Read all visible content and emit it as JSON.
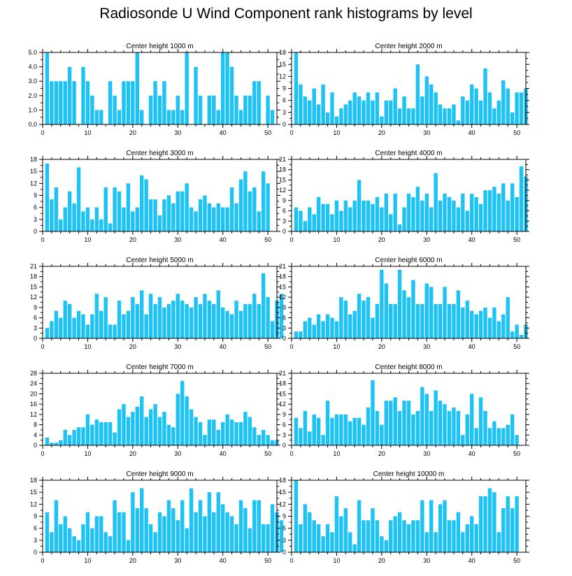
{
  "title": "Radiosonde U Wind Component rank histograms by level",
  "bar_color": "#1ec3f5",
  "chart_data": [
    {
      "type": "bar",
      "title": "Center height 1000 m",
      "ylim": [
        0,
        5
      ],
      "yticks": [
        0,
        1,
        2,
        3,
        4,
        5
      ],
      "ytick_labels": [
        "0.0",
        "1.0",
        "2.0",
        "3.0",
        "4.0",
        "5.0"
      ],
      "xlim": [
        0,
        52
      ],
      "xticks": [
        0,
        10,
        20,
        30,
        40,
        50
      ],
      "values": [
        5,
        3,
        3,
        3,
        3,
        4,
        3,
        0,
        4,
        3,
        2,
        1,
        1,
        0,
        3,
        2,
        1,
        3,
        3,
        3,
        5,
        1,
        0,
        2,
        3,
        2,
        3,
        1,
        1,
        2,
        1,
        5,
        0,
        4,
        2,
        0,
        2,
        2,
        1,
        5,
        5,
        4,
        2,
        1,
        2,
        2,
        3,
        3,
        0,
        2,
        1
      ]
    },
    {
      "type": "bar",
      "title": "Center height 2000 m",
      "ylim": [
        0,
        18
      ],
      "yticks": [
        0,
        3,
        6,
        9,
        12,
        15,
        18
      ],
      "ytick_labels": [
        "0",
        "3",
        "6",
        "9",
        "12",
        "15",
        "18"
      ],
      "xlim": [
        0,
        52
      ],
      "xticks": [
        0,
        10,
        20,
        30,
        40,
        50
      ],
      "values": [
        18,
        10,
        7,
        6,
        9,
        5,
        10,
        3,
        8,
        2,
        4,
        5,
        6,
        8,
        7,
        6,
        8,
        6,
        8,
        2,
        6,
        6,
        9,
        4,
        7,
        4,
        4,
        15,
        7,
        12,
        10,
        8,
        5,
        4,
        4,
        5,
        1,
        7,
        6,
        10,
        9,
        6,
        14,
        8,
        4,
        6,
        11,
        9,
        3,
        8,
        8,
        9
      ]
    },
    {
      "type": "bar",
      "title": "Center height 3000 m",
      "ylim": [
        0,
        18
      ],
      "yticks": [
        0,
        3,
        6,
        9,
        12,
        15,
        18
      ],
      "ytick_labels": [
        "0",
        "3",
        "6",
        "9",
        "12",
        "15",
        "18"
      ],
      "xlim": [
        0,
        52
      ],
      "xticks": [
        0,
        10,
        20,
        30,
        40,
        50
      ],
      "values": [
        17,
        8,
        11,
        3,
        6,
        10,
        7,
        16,
        5,
        6,
        3,
        6,
        3,
        11,
        2,
        11,
        10,
        6,
        12,
        5,
        6,
        14,
        13,
        8,
        8,
        4,
        8,
        9,
        7,
        10,
        10,
        12,
        6,
        5,
        8,
        9,
        7,
        6,
        7,
        6,
        6,
        11,
        7,
        13,
        15,
        10,
        11,
        5,
        15,
        12
      ]
    },
    {
      "type": "bar",
      "title": "Center height 4000 m",
      "ylim": [
        0,
        21
      ],
      "yticks": [
        0,
        3,
        6,
        9,
        12,
        15,
        18,
        21
      ],
      "ytick_labels": [
        "0",
        "3",
        "6",
        "9",
        "12",
        "15",
        "18",
        "21"
      ],
      "xlim": [
        0,
        52
      ],
      "xticks": [
        0,
        10,
        20,
        30,
        40,
        50
      ],
      "values": [
        7,
        6,
        3,
        7,
        5,
        10,
        8,
        8,
        5,
        9,
        6,
        9,
        7,
        9,
        15,
        9,
        9,
        8,
        10,
        7,
        11,
        5,
        11,
        2,
        7,
        11,
        10,
        13,
        9,
        11,
        7,
        17,
        9,
        11,
        10,
        9,
        7,
        11,
        6,
        11,
        10,
        8,
        12,
        12,
        13,
        11,
        14,
        9,
        14,
        10,
        19,
        16
      ]
    },
    {
      "type": "bar",
      "title": "Center height 5000 m",
      "ylim": [
        0,
        21
      ],
      "yticks": [
        0,
        3,
        6,
        9,
        12,
        15,
        18,
        21
      ],
      "ytick_labels": [
        "0",
        "3",
        "6",
        "9",
        "12",
        "15",
        "18",
        "21"
      ],
      "xlim": [
        0,
        52
      ],
      "xticks": [
        0,
        10,
        20,
        30,
        40,
        50
      ],
      "values": [
        3,
        5,
        8,
        6,
        11,
        10,
        6,
        8,
        7,
        4,
        7,
        13,
        8,
        12,
        4,
        4,
        11,
        7,
        8,
        12,
        10,
        14,
        7,
        13,
        10,
        12,
        9,
        10,
        11,
        13,
        11,
        10,
        9,
        12,
        10,
        13,
        11,
        10,
        14,
        9,
        8,
        7,
        11,
        8,
        10,
        10,
        13,
        10,
        19,
        12,
        5,
        11,
        13
      ]
    },
    {
      "type": "bar",
      "title": "Center height 6000 m",
      "ylim": [
        0,
        21
      ],
      "yticks": [
        0,
        3,
        6,
        9,
        12,
        15,
        18,
        21
      ],
      "ytick_labels": [
        "0",
        "3",
        "6",
        "9",
        "12",
        "15",
        "18",
        "21"
      ],
      "xlim": [
        0,
        52
      ],
      "xticks": [
        0,
        10,
        20,
        30,
        40,
        50
      ],
      "values": [
        2,
        2,
        5,
        6,
        4,
        7,
        5,
        7,
        6,
        5,
        12,
        11,
        7,
        8,
        13,
        11,
        12,
        6,
        10,
        20,
        16,
        10,
        10,
        20,
        14,
        12,
        17,
        10,
        10,
        16,
        15,
        10,
        10,
        15,
        10,
        10,
        14,
        9,
        11,
        8,
        7,
        8,
        9,
        6,
        9,
        5,
        7,
        12,
        2,
        4,
        1,
        4
      ]
    },
    {
      "type": "bar",
      "title": "Center height 7000 m",
      "ylim": [
        0,
        28
      ],
      "yticks": [
        0,
        4,
        8,
        12,
        16,
        20,
        24,
        28
      ],
      "ytick_labels": [
        "0",
        "4",
        "8",
        "12",
        "16",
        "20",
        "24",
        "28"
      ],
      "xlim": [
        0,
        52
      ],
      "xticks": [
        0,
        10,
        20,
        30,
        40,
        50
      ],
      "values": [
        3,
        1,
        1,
        2,
        6,
        4,
        6,
        7,
        7,
        12,
        8,
        10,
        9,
        9,
        9,
        5,
        14,
        16,
        11,
        13,
        15,
        19,
        11,
        14,
        16,
        11,
        13,
        8,
        7,
        20,
        25,
        19,
        14,
        11,
        9,
        4,
        10,
        10,
        6,
        9,
        12,
        10,
        9,
        9,
        13,
        11,
        7,
        4,
        6,
        4,
        2,
        2
      ]
    },
    {
      "type": "bar",
      "title": "Center height 8000 m",
      "ylim": [
        0,
        21
      ],
      "yticks": [
        0,
        3,
        6,
        9,
        12,
        15,
        18,
        21
      ],
      "ytick_labels": [
        "0",
        "3",
        "6",
        "9",
        "12",
        "15",
        "18",
        "21"
      ],
      "xlim": [
        0,
        52
      ],
      "xticks": [
        0,
        10,
        20,
        30,
        40,
        50
      ],
      "values": [
        8,
        5,
        10,
        4,
        9,
        8,
        3,
        13,
        8,
        9,
        9,
        9,
        7,
        8,
        8,
        6,
        11,
        19,
        10,
        6,
        13,
        13,
        14,
        10,
        13,
        13,
        9,
        10,
        17,
        15,
        10,
        16,
        13,
        12,
        10,
        11,
        10,
        3,
        9,
        15,
        5,
        14,
        10,
        5,
        7,
        5,
        5,
        6,
        9,
        3
      ]
    },
    {
      "type": "bar",
      "title": "Center height 9000 m",
      "ylim": [
        0,
        18
      ],
      "yticks": [
        0,
        3,
        6,
        9,
        12,
        15,
        18
      ],
      "ytick_labels": [
        "0",
        "3",
        "6",
        "9",
        "12",
        "15",
        "18"
      ],
      "xlim": [
        0,
        52
      ],
      "xticks": [
        0,
        10,
        20,
        30,
        40,
        50
      ],
      "values": [
        10,
        5,
        13,
        7,
        9,
        6,
        4,
        3,
        7,
        10,
        6,
        9,
        9,
        5,
        4,
        13,
        10,
        10,
        3,
        15,
        11,
        16,
        11,
        7,
        5,
        10,
        9,
        13,
        11,
        8,
        13,
        6,
        16,
        10,
        13,
        9,
        15,
        10,
        15,
        12,
        10,
        9,
        7,
        13,
        11,
        6,
        13,
        13,
        7,
        7,
        12,
        10,
        8
      ]
    },
    {
      "type": "bar",
      "title": "Center height 10000 m",
      "ylim": [
        0,
        18
      ],
      "yticks": [
        0,
        3,
        6,
        9,
        12,
        15,
        18
      ],
      "ytick_labels": [
        "0",
        "3",
        "6",
        "9",
        "12",
        "15",
        "18"
      ],
      "xlim": [
        0,
        52
      ],
      "xticks": [
        0,
        10,
        20,
        30,
        40,
        50
      ],
      "values": [
        18,
        7,
        12,
        10,
        8,
        7,
        4,
        7,
        5,
        14,
        9,
        11,
        5,
        2,
        13,
        8,
        8,
        11,
        8,
        4,
        3,
        8,
        9,
        10,
        8,
        7,
        8,
        8,
        13,
        5,
        13,
        5,
        12,
        13,
        8,
        8,
        10,
        5,
        7,
        9,
        7,
        14,
        14,
        16,
        15,
        5,
        11,
        14,
        11,
        14
      ]
    }
  ]
}
